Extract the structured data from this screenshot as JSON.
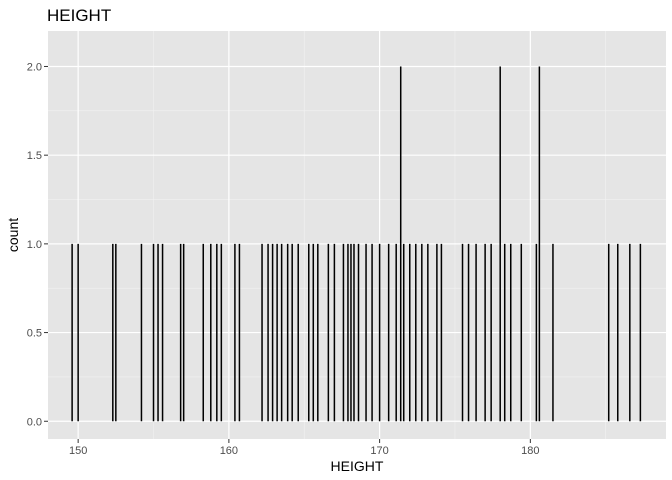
{
  "chart_data": {
    "type": "bar",
    "title": "HEIGHT",
    "xlabel": "HEIGHT",
    "ylabel": "count",
    "xlim": [
      148,
      189
    ],
    "ylim": [
      -0.1,
      2.2
    ],
    "x_ticks": [
      150,
      160,
      170,
      180
    ],
    "y_ticks": [
      0.0,
      0.5,
      1.0,
      1.5,
      2.0
    ],
    "x_tick_labels": [
      "150",
      "160",
      "170",
      "180"
    ],
    "y_tick_labels": [
      "0.0",
      "0.5",
      "1.0",
      "1.5",
      "2.0"
    ],
    "grid": true,
    "bar_width": 0.1,
    "bar_color": "#000000",
    "background_color": "#e5e5e5",
    "x": [
      149.6,
      150.0,
      152.3,
      152.5,
      154.2,
      155.0,
      155.3,
      155.6,
      156.8,
      157.0,
      158.3,
      158.8,
      159.2,
      159.5,
      160.4,
      160.7,
      162.2,
      162.6,
      162.9,
      163.2,
      163.5,
      163.9,
      164.2,
      164.6,
      165.3,
      165.6,
      165.9,
      166.6,
      167.0,
      167.6,
      167.9,
      168.1,
      168.3,
      168.6,
      169.1,
      169.5,
      170.0,
      170.6,
      171.1,
      171.4,
      171.6,
      172.0,
      172.4,
      172.8,
      173.2,
      173.8,
      174.1,
      175.5,
      175.9,
      176.4,
      177.0,
      177.4,
      178.0,
      178.3,
      178.7,
      179.4,
      180.4,
      180.6,
      181.5,
      185.2,
      185.8,
      186.6,
      187.3
    ],
    "values": [
      1,
      1,
      1,
      1,
      1,
      1,
      1,
      1,
      1,
      1,
      1,
      1,
      1,
      1,
      1,
      1,
      1,
      1,
      1,
      1,
      1,
      1,
      1,
      1,
      1,
      1,
      1,
      1,
      1,
      1,
      1,
      1,
      1,
      1,
      1,
      1,
      1,
      1,
      1,
      2,
      1,
      1,
      1,
      1,
      1,
      1,
      1,
      1,
      1,
      1,
      1,
      1,
      2,
      1,
      1,
      1,
      1,
      2,
      1,
      1,
      1,
      1,
      1
    ]
  }
}
